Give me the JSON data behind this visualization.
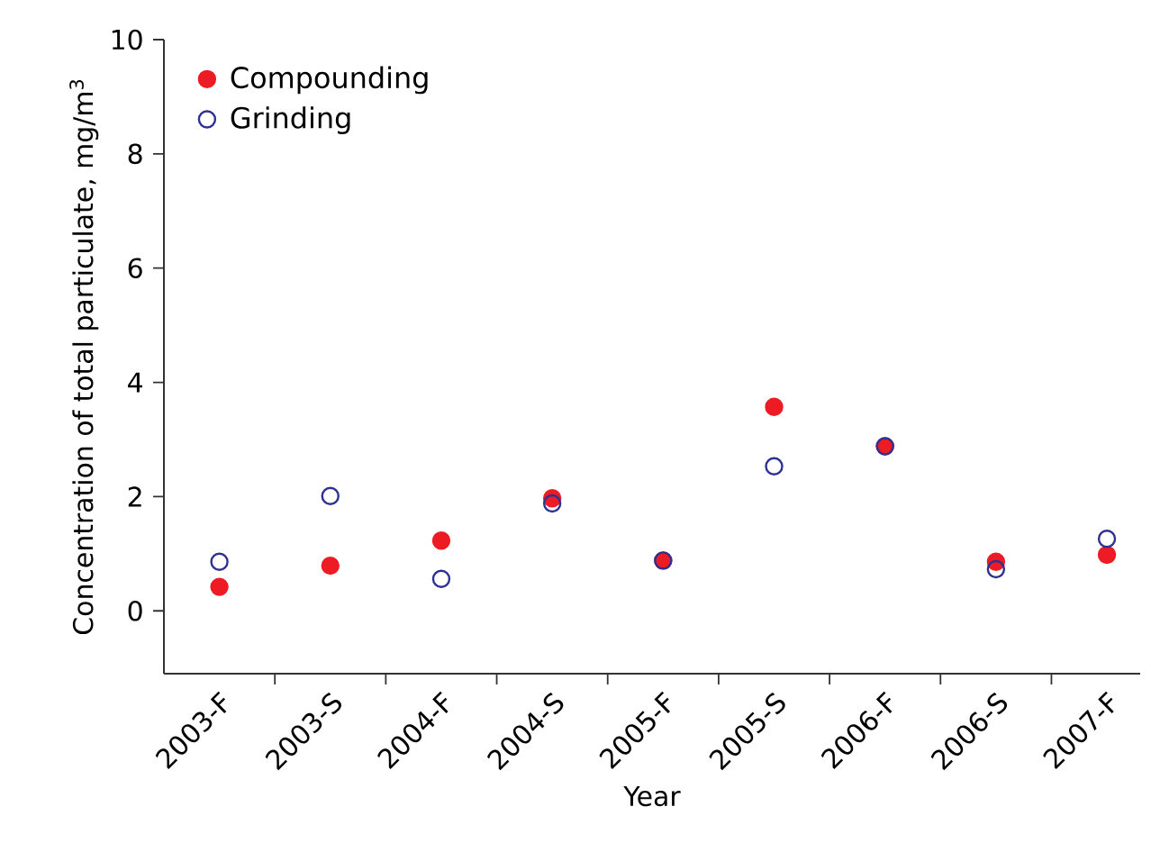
{
  "chart_data": {
    "type": "scatter",
    "xlabel": "Year",
    "ylabel": "Concentration of total particulate, mg/m$^{3}$",
    "categories": [
      "2003-F",
      "2003-S",
      "2004-F",
      "2004-S",
      "2005-F",
      "2005-S",
      "2006-F",
      "2006-S",
      "2007-F"
    ],
    "series": [
      {
        "name": "Compounding",
        "color": "#ed1c24",
        "values": [
          0.42,
          0.79,
          1.23,
          1.97,
          0.88,
          3.57,
          2.88,
          0.86,
          0.98
        ]
      },
      {
        "name": "Grinding",
        "color": "#2e3192",
        "values": [
          0.86,
          2.01,
          0.56,
          1.88,
          0.88,
          2.53,
          2.88,
          0.73,
          1.26
        ]
      }
    ],
    "ylim": [
      -1.1,
      10
    ],
    "yticks": [
      0,
      2,
      4,
      6,
      8,
      10
    ],
    "legend": "top left",
    "marker": "circle"
  }
}
